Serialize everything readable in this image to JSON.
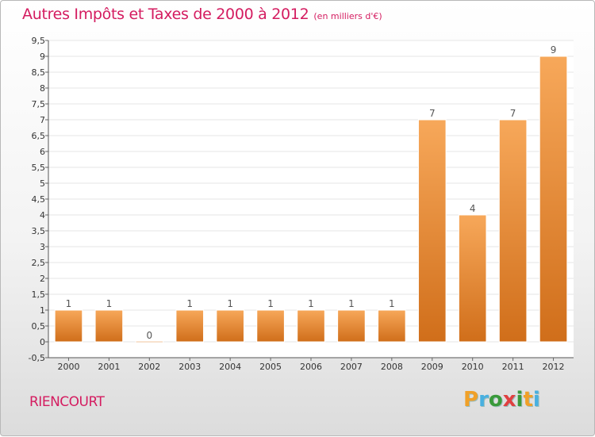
{
  "chart_data": {
    "type": "bar",
    "title": "Autres Impôts et Taxes de 2000 à 2012",
    "subtitle": "(en milliers d'€)",
    "categories": [
      "2000",
      "2001",
      "2002",
      "2003",
      "2004",
      "2005",
      "2006",
      "2007",
      "2008",
      "2009",
      "2010",
      "2011",
      "2012"
    ],
    "values": [
      1,
      1,
      0,
      1,
      1,
      1,
      1,
      1,
      1,
      7,
      4,
      7,
      9
    ],
    "data_labels": [
      "1",
      "1",
      "0",
      "1",
      "1",
      "1",
      "1",
      "1",
      "1",
      "7",
      "4",
      "7",
      "9"
    ],
    "ylim": [
      -0.5,
      9.5
    ],
    "yticks": [
      "-0,5",
      "0",
      "0,5",
      "1",
      "1,5",
      "2",
      "2,5",
      "3",
      "3,5",
      "4",
      "4,5",
      "5",
      "5,5",
      "6",
      "6,5",
      "7",
      "7,5",
      "8",
      "8,5",
      "9",
      "9,5"
    ],
    "ytick_values": [
      -0.5,
      0,
      0.5,
      1,
      1.5,
      2,
      2.5,
      3,
      3.5,
      4,
      4.5,
      5,
      5.5,
      6,
      6.5,
      7,
      7.5,
      8,
      8.5,
      9,
      9.5
    ],
    "xlabel": "",
    "ylabel": "",
    "grid": true,
    "colors": {
      "bar_top": "#f7a85a",
      "bar_bottom": "#d06e1a",
      "title": "#d41c60",
      "grid": "#e6e6e6"
    }
  },
  "footer": {
    "commune": "RIENCOURT",
    "brand_letters": [
      "P",
      "r",
      "o",
      "x",
      "i",
      "t",
      "i"
    ],
    "brand_colors": [
      "#f0a028",
      "#48b0e0",
      "#3a9a3a",
      "#e04040",
      "#3a9a3a",
      "#f0a028",
      "#48b0e0"
    ]
  }
}
